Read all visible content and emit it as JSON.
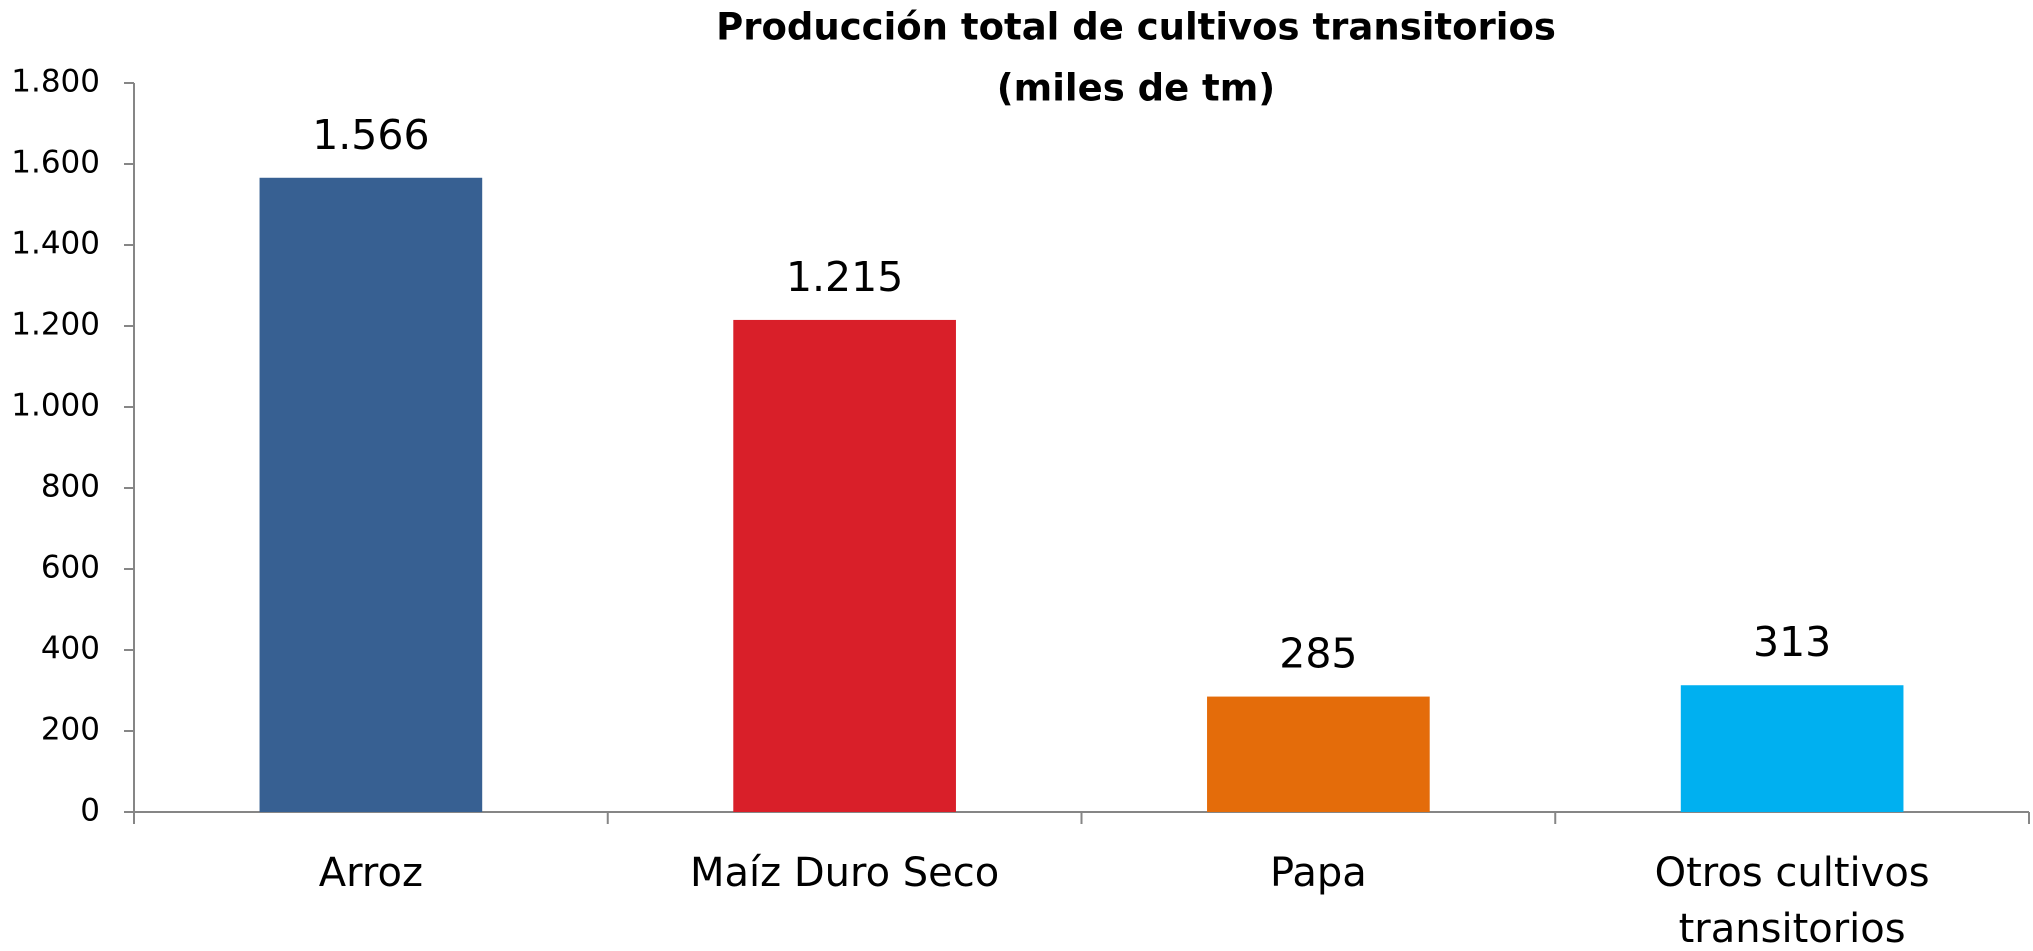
{
  "chart_data": {
    "type": "bar",
    "title": "Producción total de cultivos transitorios",
    "subtitle": "(miles de tm)",
    "categories": [
      "Arroz",
      "Maíz Duro Seco",
      "Papa",
      "Otros cultivos transitorios"
    ],
    "values": [
      1566,
      1215,
      285,
      313
    ],
    "value_labels": [
      "1.566",
      "1.215",
      "285",
      "313"
    ],
    "colors": [
      "#376092",
      "#d91f29",
      "#e46c0a",
      "#00b0f0"
    ],
    "ylim": [
      0,
      1800
    ],
    "yticks": [
      0,
      200,
      400,
      600,
      800,
      {
        "value": 1000,
        "label": "1.000"
      },
      {
        "value": 1200,
        "label": "1.200"
      },
      {
        "value": 1400,
        "label": "1.400"
      },
      {
        "value": 1600,
        "label": "1.600"
      },
      {
        "value": 1800,
        "label": "1.800"
      }
    ],
    "grid": false
  }
}
